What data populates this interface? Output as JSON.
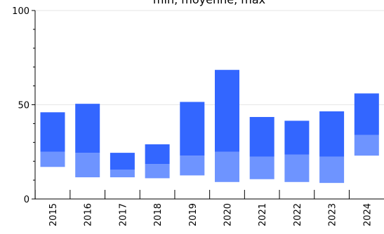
{
  "chart_data": {
    "type": "bar",
    "title": "min, moyenne, max",
    "xlabel": "",
    "ylabel": "",
    "ylim": [
      0,
      100
    ],
    "yticks": [
      "0",
      "50",
      "100"
    ],
    "grid": true,
    "categories": [
      "2015",
      "2016",
      "2017",
      "2018",
      "2019",
      "2020",
      "2021",
      "2022",
      "2023",
      "2024"
    ],
    "series": [
      {
        "values": [
          17,
          11.5,
          11.5,
          11,
          12.5,
          9,
          10.5,
          9,
          8.5,
          23
        ]
      },
      {
        "values": [
          25,
          24.5,
          15.5,
          18.5,
          23,
          25,
          22.5,
          23.5,
          22.5,
          34
        ]
      },
      {
        "values": [
          46,
          50.5,
          24.5,
          29,
          51.5,
          68.5,
          43.5,
          41.5,
          46.5,
          56
        ]
      }
    ],
    "colors": {
      "lower": "#6e94ff",
      "upper": "#3366ff",
      "grid": "#e6e6e6",
      "axis": "#000000"
    }
  }
}
